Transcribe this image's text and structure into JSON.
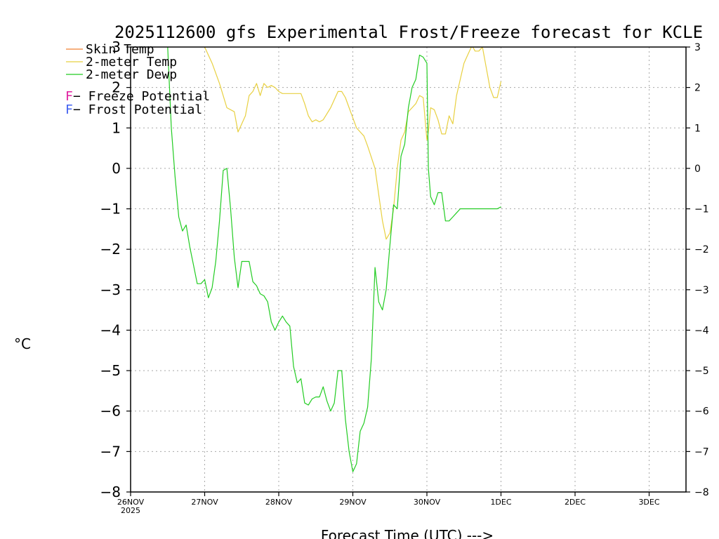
{
  "chart_data": {
    "type": "line",
    "title": "2025112600 gfs Experimental Frost/Freeze forecast for KCLE",
    "xlabel": "Forecast Time (UTC) --->",
    "ylabel": "°C",
    "ylim": [
      -8,
      3
    ],
    "xlim_days": [
      0,
      7.5
    ],
    "y_ticks": [
      "3",
      "2",
      "1",
      "0",
      "−1",
      "−2",
      "−3",
      "−4",
      "−5",
      "−6",
      "−7",
      "−8"
    ],
    "y_tick_values": [
      3,
      2,
      1,
      0,
      -1,
      -2,
      -3,
      -4,
      -5,
      -6,
      -7,
      -8
    ],
    "x_ticks": [
      {
        "day": 0,
        "label": "26NOV",
        "sub": "2025"
      },
      {
        "day": 1,
        "label": "27NOV"
      },
      {
        "day": 2,
        "label": "28NOV"
      },
      {
        "day": 3,
        "label": "29NOV"
      },
      {
        "day": 4,
        "label": "30NOV"
      },
      {
        "day": 5,
        "label": "1DEC"
      },
      {
        "day": 6,
        "label": "2DEC"
      },
      {
        "day": 7,
        "label": "3DEC"
      }
    ],
    "grid": true,
    "legend": [
      {
        "label": "Skin Temp",
        "color": "#f08030"
      },
      {
        "label": "2-meter Temp",
        "color": "#e8d040"
      },
      {
        "label": "2-meter Dewp",
        "color": "#22cc22"
      }
    ],
    "annotations": [
      {
        "symbol": "F",
        "text": " − Freeze Potential",
        "color": "#e020a0"
      },
      {
        "symbol": "F",
        "text": " − Frost Potential",
        "color": "#4060f0"
      }
    ],
    "series": [
      {
        "name": "2-meter Temp",
        "color": "#e8d040",
        "x": [
          1.0,
          1.1,
          1.2,
          1.3,
          1.4,
          1.45,
          1.5,
          1.55,
          1.6,
          1.65,
          1.7,
          1.75,
          1.8,
          1.85,
          1.9,
          1.95,
          2.0,
          2.05,
          2.1,
          2.2,
          2.3,
          2.35,
          2.4,
          2.45,
          2.5,
          2.55,
          2.6,
          2.7,
          2.8,
          2.85,
          2.9,
          2.95,
          3.0,
          3.05,
          3.1,
          3.15,
          3.2,
          3.3,
          3.4,
          3.45,
          3.5,
          3.55,
          3.6,
          3.65,
          3.7,
          3.75,
          3.8,
          3.85,
          3.9,
          3.95,
          4.0,
          4.02,
          4.05,
          4.1,
          4.15,
          4.2,
          4.25,
          4.3,
          4.35,
          4.4,
          4.45,
          4.5,
          4.55,
          4.6,
          4.62,
          4.65,
          4.7,
          4.75,
          4.8,
          4.85,
          4.9,
          4.95,
          5.0
        ],
        "values": [
          3.0,
          2.6,
          2.1,
          1.5,
          1.4,
          0.9,
          1.1,
          1.3,
          1.8,
          1.9,
          2.1,
          1.8,
          2.1,
          2.0,
          2.05,
          2.0,
          1.9,
          1.85,
          1.85,
          1.85,
          1.85,
          1.6,
          1.3,
          1.15,
          1.2,
          1.15,
          1.2,
          1.5,
          1.9,
          1.9,
          1.75,
          1.5,
          1.25,
          1.0,
          0.9,
          0.8,
          0.55,
          0.0,
          -1.3,
          -1.75,
          -1.6,
          -1.0,
          0.0,
          0.7,
          0.9,
          1.4,
          1.5,
          1.6,
          1.8,
          1.75,
          0.7,
          0.9,
          1.5,
          1.45,
          1.2,
          0.85,
          0.85,
          1.3,
          1.1,
          1.8,
          2.2,
          2.6,
          2.8,
          3.0,
          3.0,
          2.9,
          2.9,
          3.0,
          2.5,
          2.0,
          1.75,
          1.75,
          2.15
        ]
      },
      {
        "name": "2-meter Dewp",
        "color": "#22cc22",
        "x": [
          0.5,
          0.55,
          0.6,
          0.65,
          0.7,
          0.75,
          0.8,
          0.85,
          0.9,
          0.95,
          1.0,
          1.05,
          1.1,
          1.15,
          1.2,
          1.25,
          1.3,
          1.35,
          1.4,
          1.45,
          1.5,
          1.55,
          1.6,
          1.65,
          1.7,
          1.75,
          1.8,
          1.85,
          1.9,
          1.95,
          2.0,
          2.05,
          2.1,
          2.15,
          2.2,
          2.25,
          2.3,
          2.35,
          2.4,
          2.45,
          2.5,
          2.55,
          2.6,
          2.65,
          2.7,
          2.75,
          2.8,
          2.85,
          2.9,
          2.95,
          3.0,
          3.05,
          3.1,
          3.15,
          3.2,
          3.25,
          3.3,
          3.35,
          3.4,
          3.45,
          3.5,
          3.55,
          3.6,
          3.65,
          3.7,
          3.75,
          3.8,
          3.85,
          3.9,
          3.95,
          4.0,
          4.02,
          4.05,
          4.1,
          4.15,
          4.2,
          4.25,
          4.3,
          4.35,
          4.4,
          4.45,
          4.5,
          4.55,
          4.6,
          4.65,
          4.7,
          4.75,
          4.8,
          4.85,
          4.9,
          4.95,
          5.0
        ],
        "values": [
          3.0,
          1.0,
          -0.2,
          -1.2,
          -1.55,
          -1.4,
          -1.95,
          -2.4,
          -2.85,
          -2.85,
          -2.75,
          -3.2,
          -2.95,
          -2.3,
          -1.3,
          -0.05,
          0.0,
          -1.0,
          -2.2,
          -2.95,
          -2.3,
          -2.3,
          -2.3,
          -2.8,
          -2.9,
          -3.1,
          -3.15,
          -3.3,
          -3.8,
          -4.0,
          -3.8,
          -3.65,
          -3.8,
          -3.9,
          -4.9,
          -5.3,
          -5.2,
          -5.8,
          -5.85,
          -5.7,
          -5.65,
          -5.65,
          -5.4,
          -5.75,
          -6.0,
          -5.8,
          -5.0,
          -5.0,
          -6.2,
          -7.0,
          -7.5,
          -7.3,
          -6.5,
          -6.3,
          -5.9,
          -4.7,
          -2.45,
          -3.3,
          -3.5,
          -3.0,
          -1.9,
          -0.9,
          -1.0,
          0.3,
          0.6,
          1.5,
          2.0,
          2.2,
          2.8,
          2.75,
          2.6,
          0.0,
          -0.7,
          -0.9,
          -0.6,
          -0.6,
          -1.3,
          -1.3,
          -1.2,
          -1.1,
          -1.0,
          -1.0,
          -1.0,
          -1.0,
          -1.0,
          -1.0,
          -1.0,
          -1.0,
          -1.0,
          -1.0,
          -1.0,
          -0.95
        ]
      }
    ]
  }
}
